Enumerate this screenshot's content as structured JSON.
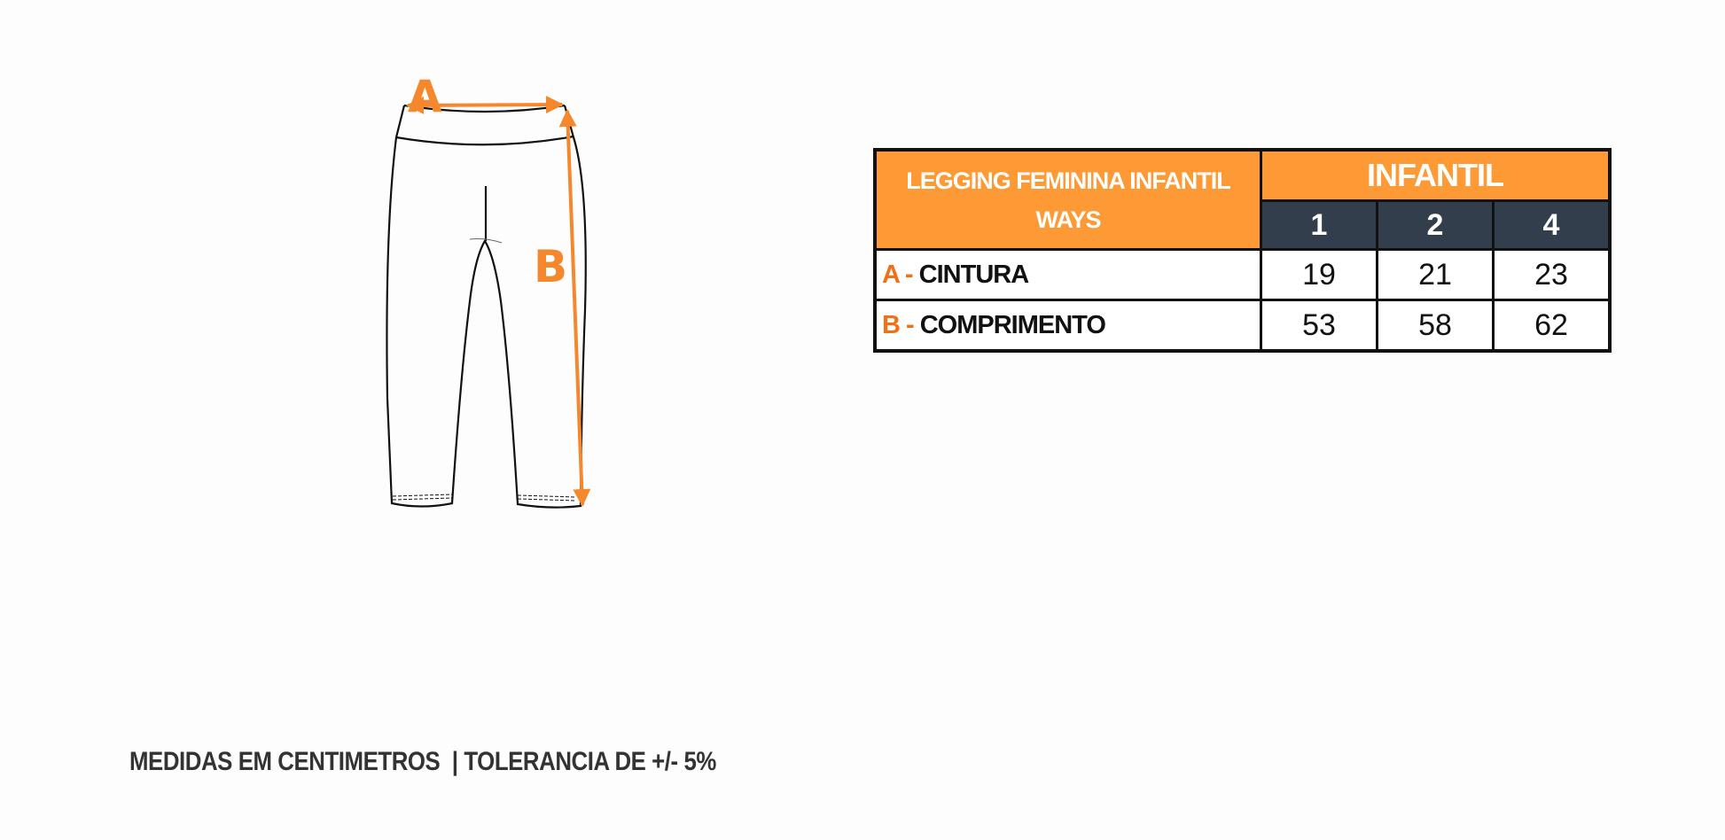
{
  "diagram": {
    "label_a": "A",
    "label_b": "B",
    "arrow_color": "#f5882d"
  },
  "table": {
    "title": "LEGGING FEMININA INFANTIL WAYS",
    "group_header": "INFANTIL",
    "sizes": [
      "1",
      "2",
      "4"
    ],
    "rows": [
      {
        "letter": "A -",
        "label": "CINTURA",
        "values": [
          "19",
          "21",
          "23"
        ]
      },
      {
        "letter": "B -",
        "label": "COMPRIMENTO",
        "values": [
          "53",
          "58",
          "62"
        ]
      }
    ],
    "header_color": "#fd9a35",
    "size_header_color": "#333e4c"
  },
  "footer": {
    "text": "MEDIDAS EM CENTIMETROS  | TOLERANCIA DE +/- 5%"
  }
}
